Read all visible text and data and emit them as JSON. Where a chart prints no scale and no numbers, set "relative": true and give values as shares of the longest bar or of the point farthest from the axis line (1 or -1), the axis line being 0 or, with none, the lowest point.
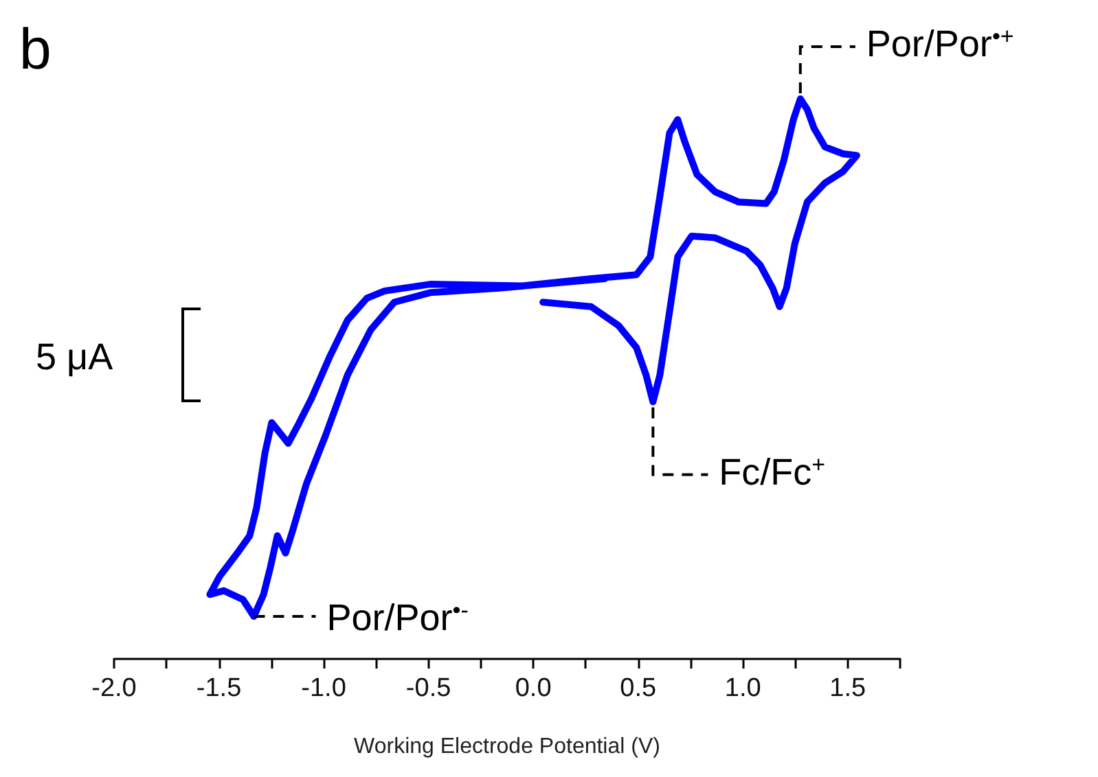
{
  "chart_data": {
    "type": "line",
    "title": "b",
    "xlabel": "Working Electrode Potential (V)",
    "relative": true,
    "xlim": [
      -2.0,
      1.75
    ],
    "xticks": [
      {
        "value": -2,
        "label": "-2.0"
      },
      {
        "value": -1.75,
        "label": null
      },
      -1.5,
      {
        "value": -1.25,
        "label": null
      },
      {
        "value": -1,
        "label": "-1.0"
      },
      {
        "value": -0.75,
        "label": null
      },
      -0.5,
      {
        "value": -0.25,
        "label": null
      },
      {
        "value": 0,
        "label": "0.0"
      },
      {
        "value": 0.25,
        "label": null
      },
      0.5,
      {
        "value": 0.75,
        "label": null
      },
      {
        "value": 1,
        "label": "1.0"
      },
      {
        "value": 1.25,
        "label": null
      },
      1.5,
      {
        "value": 1.75,
        "label": null
      }
    ],
    "tick_labels": "x",
    "series": [
      {
        "color": "#0000ff",
        "x": [
          0.046,
          0.276,
          0.407,
          0.492,
          0.538,
          0.571,
          0.604,
          0.65,
          0.689,
          0.755,
          0.867,
          1.018,
          1.083,
          1.142,
          1.175,
          1.208,
          1.248,
          1.307,
          1.392,
          1.477,
          1.543,
          1.477,
          1.392,
          1.339,
          1.307,
          1.274,
          1.241,
          1.195,
          1.149,
          1.11,
          0.978,
          0.867,
          0.781,
          0.722,
          0.689,
          0.65,
          0.604,
          0.558,
          0.492,
          0.276,
          -0.053,
          -0.492,
          -0.709,
          -0.794,
          -0.886,
          -0.972,
          -1.057,
          -1.123,
          -1.169,
          -1.248,
          -1.28,
          -1.32,
          -1.353,
          -1.412,
          -1.497,
          -1.543,
          -1.477,
          -1.385,
          -1.333,
          -1.287,
          -1.254,
          -1.221,
          -1.182,
          -1.149,
          -1.083,
          -0.991,
          -0.886,
          -0.775,
          -0.663,
          -0.492,
          -0.164,
          0.341
        ],
        "values": [
          0.637,
          0.629,
          0.595,
          0.556,
          0.507,
          0.459,
          0.507,
          0.62,
          0.718,
          0.755,
          0.752,
          0.728,
          0.703,
          0.662,
          0.629,
          0.662,
          0.742,
          0.816,
          0.85,
          0.87,
          0.899,
          0.902,
          0.914,
          0.948,
          0.981,
          1.0,
          0.963,
          0.89,
          0.834,
          0.813,
          0.816,
          0.834,
          0.865,
          0.924,
          0.963,
          0.939,
          0.826,
          0.718,
          0.686,
          0.679,
          0.666,
          0.669,
          0.657,
          0.644,
          0.605,
          0.539,
          0.466,
          0.417,
          0.385,
          0.422,
          0.368,
          0.27,
          0.22,
          0.189,
          0.147,
          0.115,
          0.122,
          0.106,
          0.076,
          0.115,
          0.164,
          0.22,
          0.189,
          0.228,
          0.312,
          0.399,
          0.507,
          0.588,
          0.637,
          0.654,
          0.662,
          0.679
        ]
      }
    ],
    "annotations": [
      {
        "text": "Por/Por$^{•+}$",
        "x": 1.274,
        "y": 1.0
      },
      {
        "text": "Fc/Fc$^{+}$",
        "x": 0.571,
        "y": 0.459
      },
      {
        "text": "Por/Por$^{•-}$",
        "x": -1.333,
        "y": 0.076
      },
      "5 μA"
    ]
  }
}
